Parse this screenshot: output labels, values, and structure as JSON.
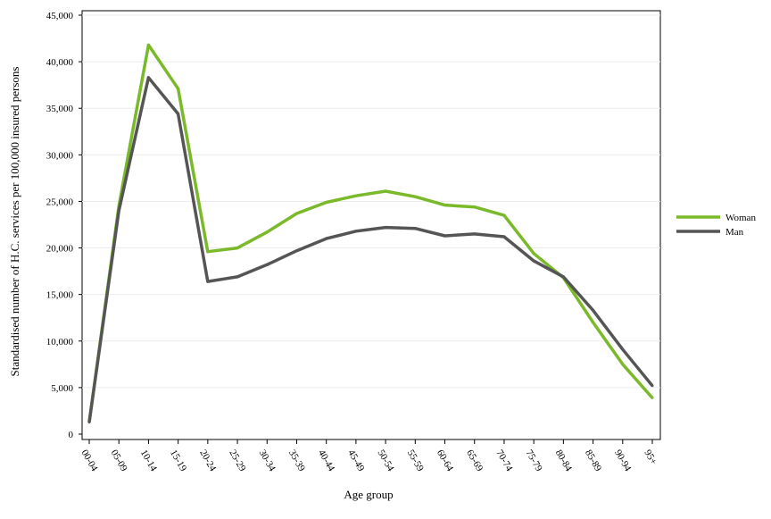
{
  "chart_data": {
    "type": "line",
    "title": "",
    "xlabel": "Age group",
    "ylabel": "Standardised number of H.C. services per 100,000 insured persons",
    "ylim": [
      0,
      45000
    ],
    "y_ticks": [
      "0",
      "5,000",
      "10,000",
      "15,000",
      "20,000",
      "25,000",
      "30,000",
      "35,000",
      "40,000",
      "45,000"
    ],
    "y_tick_values": [
      0,
      5000,
      10000,
      15000,
      20000,
      25000,
      30000,
      35000,
      40000,
      45000
    ],
    "grid": "horizontal",
    "legend_position": "right",
    "categories": [
      "00-04",
      "05-09",
      "10-14",
      "15-19",
      "20-24",
      "25-29",
      "30-34",
      "35-39",
      "40-44",
      "45-49",
      "50-54",
      "55-59",
      "60-64",
      "65-69",
      "70-74",
      "75-79",
      "80-84",
      "85-89",
      "90-94",
      "95+"
    ],
    "series": [
      {
        "name": "Woman",
        "color": "#7ab929",
        "values": [
          1300,
          24500,
          41800,
          37100,
          19600,
          20000,
          21700,
          23700,
          24900,
          25600,
          26100,
          25500,
          24600,
          24400,
          23500,
          19400,
          16800,
          12000,
          7500,
          3900
        ]
      },
      {
        "name": "Man",
        "color": "#555555",
        "values": [
          1300,
          24000,
          38300,
          34400,
          16400,
          16900,
          18200,
          19700,
          21000,
          21800,
          22200,
          22100,
          21300,
          21500,
          21200,
          18600,
          16900,
          13300,
          9100,
          5200
        ]
      }
    ]
  }
}
